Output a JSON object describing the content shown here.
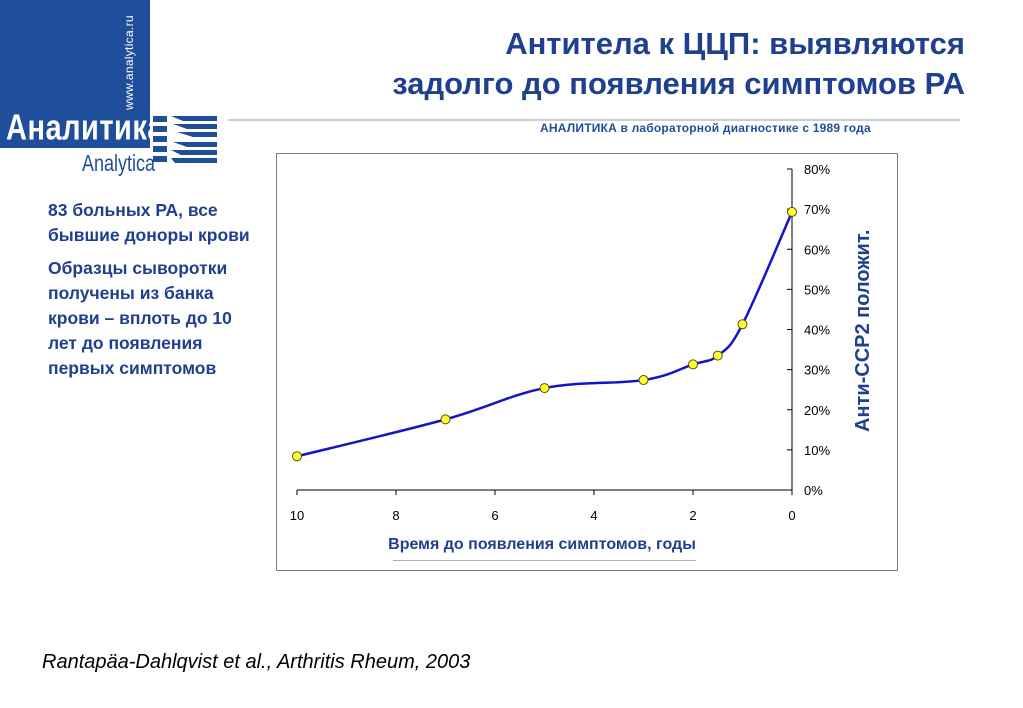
{
  "logo": {
    "url": "www.analytica.ru",
    "name_ru": "Аналитика",
    "name_en": "Analytica",
    "tagline": "АНАЛИТИКА в лабораторной диагностике с 1989 года",
    "brand_color": "#1f4e9a"
  },
  "title": {
    "line1": "Антитела к ЦЦП: выявляются",
    "line2": "задолго до появления симптомов РА"
  },
  "notes": {
    "para1": "83 больных РА, все бывшие доноры крови",
    "para2": "Образцы сыворотки получены из банка крови – вплоть до 10 лет до появления первых симптомов"
  },
  "citation": "Rantapäa-Dahlqvist et al., Arthritis Rheum, 2003",
  "chart_data": {
    "type": "line",
    "title": "",
    "xlabel": "Время до появления симптомов, годы",
    "ylabel": "Анти-ССР2 положит.",
    "x_reversed": true,
    "xlim": [
      10,
      0
    ],
    "ylim": [
      0,
      80
    ],
    "x_ticks": [
      "10",
      "8",
      "6",
      "4",
      "2",
      "0"
    ],
    "y_ticks": [
      "0%",
      "10%",
      "20%",
      "30%",
      "40%",
      "50%",
      "60%",
      "70%",
      "80%"
    ],
    "series": [
      {
        "color": "#1414c8",
        "marker_color": "#ffff33",
        "points": [
          {
            "x": 10,
            "y": 8.4
          },
          {
            "x": 7,
            "y": 17.6
          },
          {
            "x": 5,
            "y": 25.4
          },
          {
            "x": 3,
            "y": 27.4
          },
          {
            "x": 2,
            "y": 31.3
          },
          {
            "x": 1.5,
            "y": 33.5
          },
          {
            "x": 1,
            "y": 41.3
          },
          {
            "x": 0,
            "y": 69.3
          }
        ]
      }
    ],
    "grid": false
  }
}
